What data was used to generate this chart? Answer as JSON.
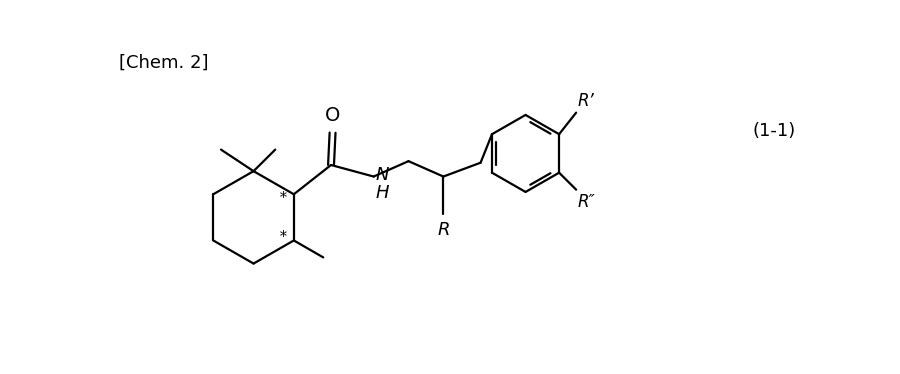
{
  "label_chem": "[Chem. 2]",
  "label_eq": "(1-1)",
  "label_O": "O",
  "label_R": "R",
  "label_Rprime": "R’",
  "label_Rdprime": "R″",
  "label_star": "*",
  "bg_color": "#ffffff",
  "line_color": "#000000",
  "font_size": 13,
  "fig_width": 9.0,
  "fig_height": 3.74
}
